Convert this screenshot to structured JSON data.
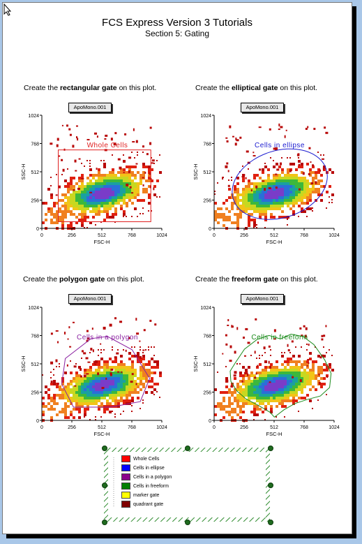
{
  "title_line1": "FCS Express Version 3 Tutorials",
  "title_line2": "Section 5: Gating",
  "plots": [
    {
      "id": "rect",
      "instr_prefix": "Create the ",
      "instr_bold": "rectangular gate",
      "instr_suffix": " on this plot.",
      "sample": "ApoMono.001",
      "gate_label": "Whole Cells",
      "gate_color": "#e02020",
      "xlabel": "FSC-H",
      "ylabel": "SSC-H",
      "xticks": [
        "0",
        "256",
        "512",
        "768",
        "1024"
      ],
      "yticks": [
        "0",
        "256",
        "512",
        "768",
        "1024"
      ]
    },
    {
      "id": "ellipse",
      "instr_prefix": "Create the ",
      "instr_bold": "elliptical gate",
      "instr_suffix": " on this plot.",
      "sample": "ApoMono.001",
      "gate_label": "Cells in ellipse",
      "gate_color": "#1a1ad0",
      "xlabel": "FSC-H",
      "ylabel": "SSC-H",
      "xticks": [
        "0",
        "256",
        "512",
        "768",
        "1024"
      ],
      "yticks": [
        "0",
        "256",
        "512",
        "768",
        "1024"
      ]
    },
    {
      "id": "polygon",
      "instr_prefix": "Create the ",
      "instr_bold": "polygon gate",
      "instr_suffix": " on this plot.",
      "sample": "ApoMono.001",
      "gate_label": "Cells in a polygon",
      "gate_color": "#8a1fa0",
      "xlabel": "FSC-H",
      "ylabel": "SSC-H",
      "xticks": [
        "0",
        "256",
        "512",
        "768",
        "1024"
      ],
      "yticks": [
        "0",
        "256",
        "512",
        "768",
        "1024"
      ]
    },
    {
      "id": "freeform",
      "instr_prefix": "Create the ",
      "instr_bold": "freeform gate",
      "instr_suffix": " on this plot.",
      "sample": "ApoMono.001",
      "gate_label": "Cells in freeform",
      "gate_color": "#1a8a1a",
      "xlabel": "FSC-H",
      "ylabel": "SSC-H",
      "xticks": [
        "0",
        "256",
        "512",
        "768",
        "1024"
      ],
      "yticks": [
        "0",
        "256",
        "512",
        "768",
        "1024"
      ]
    }
  ],
  "legend": {
    "items": [
      {
        "label": "Whole Cells",
        "color": "#ff0000"
      },
      {
        "label": "Cells in ellipse",
        "color": "#0000ff"
      },
      {
        "label": "Cells in a polygon",
        "color": "#8b008b"
      },
      {
        "label": "Cells in freeform",
        "color": "#008000"
      },
      {
        "label": "marker gate",
        "color": "#ffff00"
      },
      {
        "label": "quadrant gate",
        "color": "#800000"
      }
    ]
  }
}
